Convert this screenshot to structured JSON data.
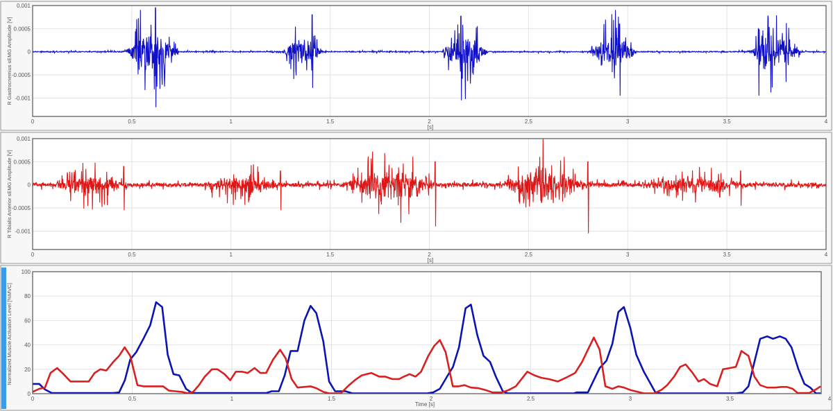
{
  "colors": {
    "gastrocnemius": "#1010c8",
    "tibialis": "#e01515",
    "activation_blue": "#0a14b4",
    "activation_red": "#d82020",
    "selection_bar": "#3c9be6"
  },
  "chart_data": [
    {
      "type": "line",
      "ylabel": "R Gastrocnemius sEMG Amplitude [V]",
      "xlabel": "[s]",
      "xlim": [
        0,
        4
      ],
      "ylim": [
        -0.0014,
        0.001
      ],
      "xticks": [
        "0",
        "0.5",
        "1",
        "1.5",
        "2",
        "2.5",
        "3",
        "3.5",
        "4"
      ],
      "yticks": [
        "0.001",
        "0.0005",
        "0",
        "-0.0005",
        "-0.001"
      ],
      "grid": true,
      "color": "#1010c8",
      "baseline_noise": 1e-05,
      "bursts": [
        {
          "start": 0.46,
          "end": 0.74,
          "peak_time": 0.62,
          "max": 0.00095,
          "min": -0.0012
        },
        {
          "start": 1.26,
          "end": 1.46,
          "peak_time": 1.41,
          "max": 0.0008,
          "min": -0.00078
        },
        {
          "start": 2.06,
          "end": 2.3,
          "peak_time": 2.16,
          "max": 0.00077,
          "min": -0.00105
        },
        {
          "start": 2.8,
          "end": 3.05,
          "peak_time": 2.96,
          "max": 0.0006,
          "min": -0.00095
        },
        {
          "start": 3.6,
          "end": 3.88,
          "peak_time": 3.66,
          "max": 0.0005,
          "min": -0.00095
        }
      ]
    },
    {
      "type": "line",
      "ylabel": "R Tibialis Anterior sEMG Amplitude [V]",
      "xlabel": "[s]",
      "xlim": [
        0,
        4
      ],
      "ylim": [
        -0.0014,
        0.001
      ],
      "xticks": [
        "0",
        "0.5",
        "1",
        "1.5",
        "2",
        "2.5",
        "3",
        "3.5",
        "4"
      ],
      "yticks": [
        "0.001",
        "0.0005",
        "0",
        "-0.0005",
        "-0.001"
      ],
      "grid": true,
      "color": "#e01515",
      "baseline_noise": 4e-05,
      "bursts": [
        {
          "start": 0.08,
          "end": 0.5,
          "peak_time": 0.46,
          "max": 0.0004,
          "min": -0.00055
        },
        {
          "start": 0.85,
          "end": 1.27,
          "peak_time": 1.25,
          "max": 0.0003,
          "min": -0.00055
        },
        {
          "start": 1.55,
          "end": 2.06,
          "peak_time": 2.03,
          "max": 0.0005,
          "min": -0.0009
        },
        {
          "start": 2.35,
          "end": 2.82,
          "peak_time": 2.8,
          "max": 0.0005,
          "min": -0.00105
        },
        {
          "start": 3.05,
          "end": 3.62,
          "peak_time": 3.57,
          "max": 0.0003,
          "min": -0.00045
        }
      ]
    },
    {
      "type": "line",
      "ylabel": "Normalized Muscle Activation Level [%MVC]",
      "xlabel": "Time [s]",
      "xlim": [
        0,
        4
      ],
      "ylim": [
        0,
        100
      ],
      "xticks": [
        "0",
        "0.5",
        "1",
        "1.5",
        "2",
        "2.5",
        "3",
        "3.5",
        "4"
      ],
      "yticks": [
        "100",
        "80",
        "60",
        "40",
        "20",
        "0"
      ],
      "grid": true,
      "series": [
        {
          "color": "#0a14b4",
          "points": [
            [
              0,
              8
            ],
            [
              0.033,
              8
            ],
            [
              0.062,
              3.4
            ],
            [
              0.097,
              0.5
            ],
            [
              0.405,
              0.5
            ],
            [
              0.434,
              1
            ],
            [
              0.463,
              11
            ],
            [
              0.49,
              28
            ],
            [
              0.52,
              34
            ],
            [
              0.556,
              45
            ],
            [
              0.59,
              56
            ],
            [
              0.62,
              75
            ],
            [
              0.65,
              71
            ],
            [
              0.678,
              32
            ],
            [
              0.707,
              16
            ],
            [
              0.736,
              15
            ],
            [
              0.77,
              4
            ],
            [
              0.8,
              0.5
            ],
            [
              1.172,
              0.5
            ],
            [
              1.2,
              2
            ],
            [
              1.236,
              2
            ],
            [
              1.265,
              15
            ],
            [
              1.295,
              35
            ],
            [
              1.33,
              35
            ],
            [
              1.364,
              60
            ],
            [
              1.395,
              72
            ],
            [
              1.424,
              66
            ],
            [
              1.459,
              43
            ],
            [
              1.488,
              10
            ],
            [
              1.518,
              2
            ],
            [
              1.57,
              2
            ],
            [
              1.605,
              0.3
            ],
            [
              1.98,
              0.3
            ],
            [
              2.01,
              1
            ],
            [
              2.044,
              4
            ],
            [
              2.08,
              14
            ],
            [
              2.11,
              22
            ],
            [
              2.14,
              38
            ],
            [
              2.173,
              70
            ],
            [
              2.2,
              73
            ],
            [
              2.232,
              48
            ],
            [
              2.263,
              31
            ],
            [
              2.296,
              26
            ],
            [
              2.325,
              14
            ],
            [
              2.36,
              2
            ],
            [
              2.384,
              0.3
            ],
            [
              2.717,
              0.3
            ],
            [
              2.73,
              1
            ],
            [
              2.787,
              1
            ],
            [
              2.846,
              21
            ],
            [
              2.88,
              27
            ],
            [
              2.91,
              41
            ],
            [
              2.94,
              67
            ],
            [
              2.968,
              71
            ],
            [
              3.0,
              54
            ],
            [
              3.03,
              32
            ],
            [
              3.068,
              18
            ],
            [
              3.126,
              1
            ],
            [
              3.155,
              0.3
            ],
            [
              3.53,
              0.3
            ],
            [
              3.564,
              1
            ],
            [
              3.593,
              6
            ],
            [
              3.623,
              26
            ],
            [
              3.652,
              45
            ],
            [
              3.687,
              47
            ],
            [
              3.716,
              45
            ],
            [
              3.751,
              47
            ],
            [
              3.78,
              45
            ],
            [
              3.809,
              38
            ],
            [
              3.844,
              20
            ],
            [
              3.874,
              8
            ],
            [
              3.903,
              5
            ],
            [
              3.932,
              0.3
            ],
            [
              3.955,
              0.3
            ]
          ]
        },
        {
          "color": "#d82020",
          "points": [
            [
              0,
              1.5
            ],
            [
              0.033,
              4
            ],
            [
              0.062,
              5
            ],
            [
              0.09,
              17
            ],
            [
              0.123,
              21
            ],
            [
              0.155,
              16
            ],
            [
              0.19,
              10
            ],
            [
              0.224,
              10
            ],
            [
              0.248,
              10
            ],
            [
              0.282,
              10
            ],
            [
              0.311,
              17
            ],
            [
              0.34,
              20
            ],
            [
              0.37,
              19
            ],
            [
              0.405,
              26
            ],
            [
              0.434,
              31
            ],
            [
              0.462,
              38
            ],
            [
              0.49,
              31
            ],
            [
              0.526,
              7
            ],
            [
              0.556,
              6
            ],
            [
              0.655,
              6
            ],
            [
              0.684,
              2.5
            ],
            [
              0.748,
              1.5
            ],
            [
              0.777,
              0.4
            ],
            [
              0.806,
              1.5
            ],
            [
              0.835,
              7
            ],
            [
              0.864,
              14
            ],
            [
              0.9,
              20
            ],
            [
              0.928,
              20
            ],
            [
              0.963,
              16
            ],
            [
              0.992,
              11
            ],
            [
              1.02,
              18
            ],
            [
              1.05,
              18
            ],
            [
              1.08,
              17
            ],
            [
              1.114,
              21
            ],
            [
              1.143,
              17
            ],
            [
              1.172,
              17
            ],
            [
              1.207,
              28
            ],
            [
              1.242,
              36
            ],
            [
              1.27,
              29
            ],
            [
              1.3,
              12
            ],
            [
              1.33,
              5
            ],
            [
              1.395,
              6
            ],
            [
              1.424,
              4.5
            ],
            [
              1.459,
              1.5
            ],
            [
              1.488,
              0.3
            ],
            [
              1.547,
              0.3
            ],
            [
              1.582,
              6
            ],
            [
              1.617,
              11
            ],
            [
              1.652,
              15
            ],
            [
              1.7,
              17
            ],
            [
              1.74,
              14
            ],
            [
              1.77,
              14
            ],
            [
              1.805,
              12
            ],
            [
              1.84,
              12
            ],
            [
              1.863,
              14
            ],
            [
              1.892,
              16
            ],
            [
              1.922,
              14
            ],
            [
              1.95,
              18
            ],
            [
              1.986,
              31
            ],
            [
              2.015,
              39
            ],
            [
              2.044,
              44
            ],
            [
              2.073,
              34
            ],
            [
              2.109,
              6
            ],
            [
              2.138,
              6
            ],
            [
              2.168,
              7
            ],
            [
              2.2,
              5
            ],
            [
              2.238,
              4.5
            ],
            [
              2.273,
              3
            ],
            [
              2.308,
              1
            ],
            [
              2.355,
              1
            ],
            [
              2.39,
              3
            ],
            [
              2.425,
              6
            ],
            [
              2.454,
              12
            ],
            [
              2.483,
              18
            ],
            [
              2.519,
              15
            ],
            [
              2.554,
              13
            ],
            [
              2.59,
              12
            ],
            [
              2.636,
              10
            ],
            [
              2.676,
              13
            ],
            [
              2.723,
              17
            ],
            [
              2.758,
              26
            ],
            [
              2.787,
              36
            ],
            [
              2.817,
              46
            ],
            [
              2.846,
              36
            ],
            [
              2.875,
              6
            ],
            [
              2.91,
              4
            ],
            [
              2.94,
              6
            ],
            [
              2.968,
              5
            ],
            [
              3.0,
              3
            ],
            [
              3.068,
              0.3
            ],
            [
              3.12,
              0.3
            ],
            [
              3.155,
              3
            ],
            [
              3.185,
              7
            ],
            [
              3.22,
              14
            ],
            [
              3.25,
              22
            ],
            [
              3.278,
              24
            ],
            [
              3.313,
              17
            ],
            [
              3.342,
              10
            ],
            [
              3.37,
              12
            ],
            [
              3.4,
              8
            ],
            [
              3.436,
              6
            ],
            [
              3.465,
              20
            ],
            [
              3.5,
              21
            ],
            [
              3.53,
              22
            ],
            [
              3.558,
              35
            ],
            [
              3.593,
              31
            ],
            [
              3.623,
              14
            ],
            [
              3.652,
              7
            ],
            [
              3.687,
              5
            ],
            [
              3.728,
              5
            ],
            [
              3.757,
              5.5
            ],
            [
              3.786,
              5.5
            ],
            [
              3.815,
              4
            ],
            [
              3.84,
              0.5
            ],
            [
              3.897,
              0.5
            ],
            [
              3.932,
              3.5
            ],
            [
              3.955,
              6
            ]
          ]
        }
      ]
    }
  ]
}
